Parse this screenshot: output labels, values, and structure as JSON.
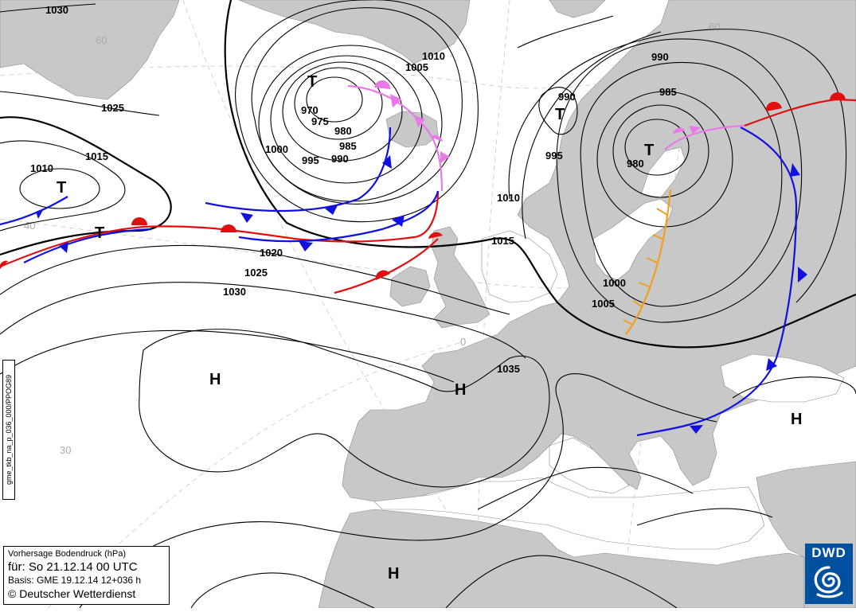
{
  "map": {
    "title": "Vorhersage Bodendruck (hPa)",
    "valid_prefix": "für:",
    "valid_time": "So 21.12.14  00 UTC",
    "basis": "Basis: GME  19.12.14 12+036 h",
    "copyright": "© Deutscher Wetterdienst",
    "product_id": "gme_tkb_na_p_036_000/PPOG89",
    "logo_text": "DWD",
    "lat_labels": [
      "60",
      "40",
      "30",
      "60",
      "0"
    ],
    "pressure_centers": [
      {
        "type": "T",
        "label": "T"
      },
      {
        "type": "T",
        "label": "T"
      },
      {
        "type": "T",
        "label": "T"
      },
      {
        "type": "T",
        "label": "T"
      },
      {
        "type": "T",
        "label": "T"
      },
      {
        "type": "H",
        "label": "H"
      },
      {
        "type": "H",
        "label": "H"
      },
      {
        "type": "H",
        "label": "H"
      },
      {
        "type": "H",
        "label": "H"
      }
    ],
    "isobar_labels": [
      "1030",
      "1025",
      "1015",
      "1010",
      "970",
      "975",
      "980",
      "985",
      "990",
      "995",
      "1000",
      "1005",
      "1010",
      "1010",
      "1015",
      "1020",
      "1025",
      "1030",
      "990",
      "985",
      "990",
      "995",
      "980",
      "1000",
      "1005",
      "1035"
    ],
    "colors": {
      "land": "#c8c8c8",
      "sea": "#ffffff",
      "isobar": "#000000",
      "cold_front": "#1010e0",
      "warm_front": "#e01010",
      "occlusion": "#e87ae8",
      "trough": "#f0a020",
      "logo": "#0050a0"
    }
  }
}
